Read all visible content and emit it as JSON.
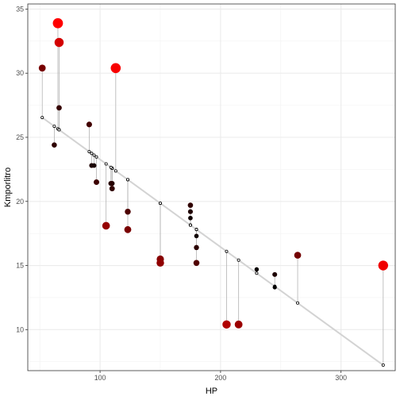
{
  "chart_data": {
    "type": "scatter",
    "title": "",
    "xlabel": "HP",
    "ylabel": "Kmporlitro",
    "xlim": [
      40,
      345
    ],
    "ylim": [
      6.8,
      35.4
    ],
    "x_ticks": [
      100,
      200,
      300
    ],
    "y_ticks": [
      10,
      15,
      20,
      25,
      30,
      35
    ],
    "grid": true,
    "theme": "light background, light grey gridlines, grey panel border",
    "fit_line": {
      "description": "fitted linear regression line",
      "color": "#d3d3d3",
      "intercept": 30.09,
      "slope": -0.06823
    },
    "residual_lines": true,
    "fitted_point_style": "small hollow black circle",
    "color_scale": {
      "meaning": "point colour and size grow with absolute residual",
      "low_color": "#000000",
      "high_color": "#ff0000"
    },
    "points": [
      {
        "x": 110,
        "y": 21.0
      },
      {
        "x": 110,
        "y": 21.0
      },
      {
        "x": 93,
        "y": 22.8
      },
      {
        "x": 110,
        "y": 21.4
      },
      {
        "x": 175,
        "y": 18.7
      },
      {
        "x": 105,
        "y": 18.1
      },
      {
        "x": 245,
        "y": 14.3
      },
      {
        "x": 62,
        "y": 24.4
      },
      {
        "x": 95,
        "y": 22.8
      },
      {
        "x": 123,
        "y": 19.2
      },
      {
        "x": 123,
        "y": 17.8
      },
      {
        "x": 180,
        "y": 16.4
      },
      {
        "x": 180,
        "y": 17.3
      },
      {
        "x": 180,
        "y": 15.2
      },
      {
        "x": 205,
        "y": 10.4
      },
      {
        "x": 215,
        "y": 10.4
      },
      {
        "x": 230,
        "y": 14.7
      },
      {
        "x": 66,
        "y": 32.4
      },
      {
        "x": 52,
        "y": 30.4
      },
      {
        "x": 65,
        "y": 33.9
      },
      {
        "x": 97,
        "y": 21.5
      },
      {
        "x": 150,
        "y": 15.5
      },
      {
        "x": 150,
        "y": 15.2
      },
      {
        "x": 245,
        "y": 13.3
      },
      {
        "x": 175,
        "y": 19.2
      },
      {
        "x": 66,
        "y": 27.3
      },
      {
        "x": 91,
        "y": 26.0
      },
      {
        "x": 113,
        "y": 30.4
      },
      {
        "x": 264,
        "y": 15.8
      },
      {
        "x": 175,
        "y": 19.7
      },
      {
        "x": 335,
        "y": 15.0
      },
      {
        "x": 109,
        "y": 21.4
      }
    ]
  }
}
